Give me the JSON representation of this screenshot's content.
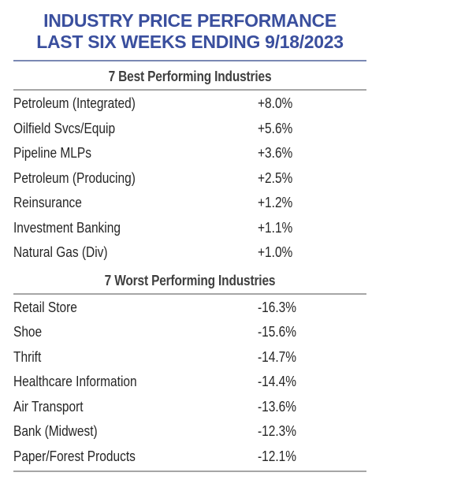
{
  "title": {
    "line1": "INDUSTRY PRICE PERFORMANCE",
    "line2": "LAST SIX WEEKS ENDING 9/18/2023"
  },
  "colors": {
    "title": "#3a4f9e",
    "title_rule": "#7a88b3",
    "section_rule": "#a6a6a6",
    "heading_text": "#404040",
    "body_text": "#262626"
  },
  "best": {
    "heading": "7 Best Performing Industries",
    "rows": [
      {
        "industry": "Petroleum (Integrated)",
        "change": "+8.0%"
      },
      {
        "industry": "Oilfield Svcs/Equip",
        "change": "+5.6%"
      },
      {
        "industry": "Pipeline MLPs",
        "change": "+3.6%"
      },
      {
        "industry": "Petroleum (Producing)",
        "change": "+2.5%"
      },
      {
        "industry": "Reinsurance",
        "change": "+1.2%"
      },
      {
        "industry": "Investment Banking",
        "change": "+1.1%"
      },
      {
        "industry": "Natural Gas (Div)",
        "change": "+1.0%"
      }
    ]
  },
  "worst": {
    "heading": "7 Worst Performing Industries",
    "rows": [
      {
        "industry": "Retail Store",
        "change": "-16.3%"
      },
      {
        "industry": "Shoe",
        "change": "-15.6%"
      },
      {
        "industry": "Thrift",
        "change": "-14.7%"
      },
      {
        "industry": "Healthcare Information",
        "change": "-14.4%"
      },
      {
        "industry": "Air Transport",
        "change": "-13.6%"
      },
      {
        "industry": "Bank (Midwest)",
        "change": "-12.3%"
      },
      {
        "industry": "Paper/Forest Products",
        "change": "-12.1%"
      }
    ]
  }
}
